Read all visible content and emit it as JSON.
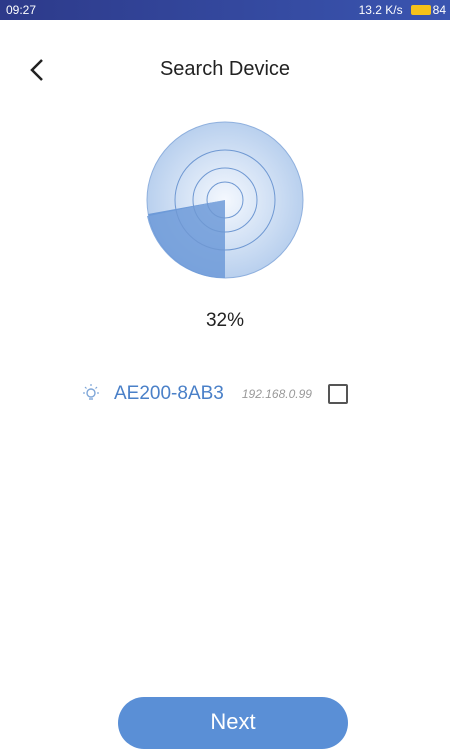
{
  "status_bar": {
    "time": "09:27",
    "network_speed": "13.2 K/s",
    "battery": "84"
  },
  "header": {
    "title": "Search Device"
  },
  "progress": "32%",
  "devices": [
    {
      "name": "AE200-8AB3",
      "ip": "192.168.0.99"
    }
  ],
  "button": "Next"
}
